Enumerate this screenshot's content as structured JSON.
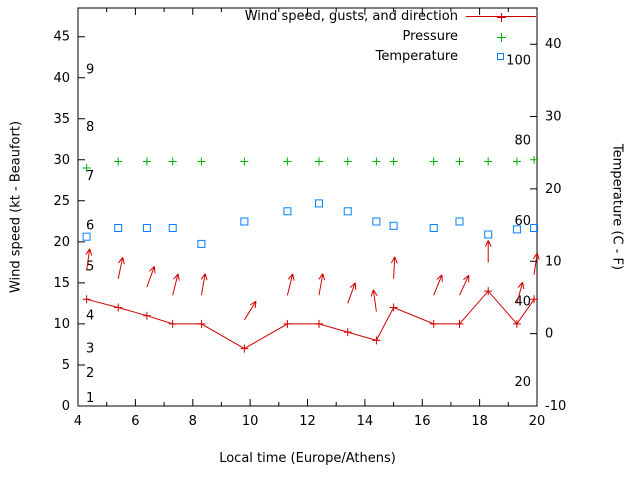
{
  "canvas": {
    "background": "#ffffff",
    "text_color": "#000000"
  },
  "chart_data": {
    "type": "line",
    "title": "",
    "xlabel": "Local time (Europe/Athens)",
    "ylabel_left": "Wind speed (kt - Beaufort)",
    "ylabel_right": "Temperature (C - F)",
    "grid": false,
    "legend_position": "top-right-inside",
    "x_axis": {
      "range": [
        4,
        20
      ],
      "major_ticks": [
        4,
        6,
        8,
        10,
        12,
        14,
        16,
        18,
        20
      ],
      "minor_step": 1
    },
    "y_left_axis": {
      "range_kt": [
        0,
        48.5
      ],
      "ticks": [
        0,
        5,
        10,
        15,
        20,
        25,
        30,
        35,
        40,
        45
      ],
      "beaufort_scale": [
        {
          "bft": 1,
          "kt": 1
        },
        {
          "bft": 2,
          "kt": 4
        },
        {
          "bft": 3,
          "kt": 7
        },
        {
          "bft": 4,
          "kt": 11
        },
        {
          "bft": 5,
          "kt": 17
        },
        {
          "bft": 6,
          "kt": 22
        },
        {
          "bft": 7,
          "kt": 28
        },
        {
          "bft": 8,
          "kt": 34
        },
        {
          "bft": 9,
          "kt": 41
        }
      ]
    },
    "y_right_axis": {
      "range_c": [
        -10,
        45
      ],
      "ticks_c": [
        -10,
        0,
        10,
        20,
        30,
        40
      ],
      "fahrenheit_labels": [
        20,
        40,
        60,
        80,
        100
      ]
    },
    "legend": [
      {
        "label": "Wind speed, gusts, and direction",
        "marker": "line-plus",
        "color": "#d00000"
      },
      {
        "label": "Pressure",
        "marker": "plus",
        "color": "#00b000"
      },
      {
        "label": "Temperature",
        "marker": "square",
        "color": "#0080ff"
      }
    ],
    "series": {
      "wind_speed": {
        "color": "#d00000",
        "times": [
          4.3,
          5.4,
          6.4,
          7.3,
          8.3,
          9.8,
          11.3,
          12.4,
          13.4,
          14.4,
          15.0,
          16.4,
          17.3,
          18.3,
          19.3,
          19.9
        ],
        "values_kt": [
          13,
          12,
          11,
          10,
          10,
          7,
          10,
          10,
          9,
          8,
          12,
          10,
          10,
          14,
          10,
          13
        ]
      },
      "wind_arrows": {
        "color": "#d00000",
        "times": [
          4.3,
          5.4,
          6.4,
          7.3,
          8.3,
          9.8,
          11.3,
          12.4,
          13.4,
          14.4,
          15.0,
          16.4,
          17.3,
          18.3,
          19.3,
          19.9
        ],
        "base_kt": [
          16.5,
          15.5,
          14.5,
          13.5,
          13.5,
          10.5,
          13.5,
          13.5,
          12.5,
          11.5,
          15.5,
          13.5,
          13.5,
          17.5,
          12.5,
          16
        ],
        "angles_deg": [
          8,
          12,
          20,
          14,
          10,
          32,
          14,
          10,
          20,
          -8,
          3,
          22,
          25,
          0,
          15,
          8
        ]
      },
      "pressure": {
        "color": "#00b000",
        "times": [
          4.3,
          5.4,
          6.4,
          7.3,
          8.3,
          9.8,
          11.3,
          12.4,
          13.4,
          14.4,
          15.0,
          16.4,
          17.3,
          18.3,
          19.3,
          19.9
        ],
        "level_kt": [
          29.0,
          29.8,
          29.8,
          29.8,
          29.8,
          29.8,
          29.8,
          29.8,
          29.8,
          29.8,
          29.8,
          29.8,
          29.8,
          29.8,
          29.8,
          30.0
        ]
      },
      "temperature": {
        "color": "#0080ff",
        "times": [
          4.3,
          5.4,
          6.4,
          7.3,
          8.3,
          9.8,
          11.3,
          12.4,
          13.4,
          14.4,
          15.0,
          16.4,
          17.3,
          18.3,
          19.3,
          19.9
        ],
        "values_c": [
          13.4,
          14.6,
          14.6,
          14.6,
          12.4,
          15.5,
          16.9,
          18.0,
          16.9,
          15.5,
          14.9,
          14.6,
          15.5,
          13.7,
          14.4,
          14.6
        ]
      }
    }
  }
}
